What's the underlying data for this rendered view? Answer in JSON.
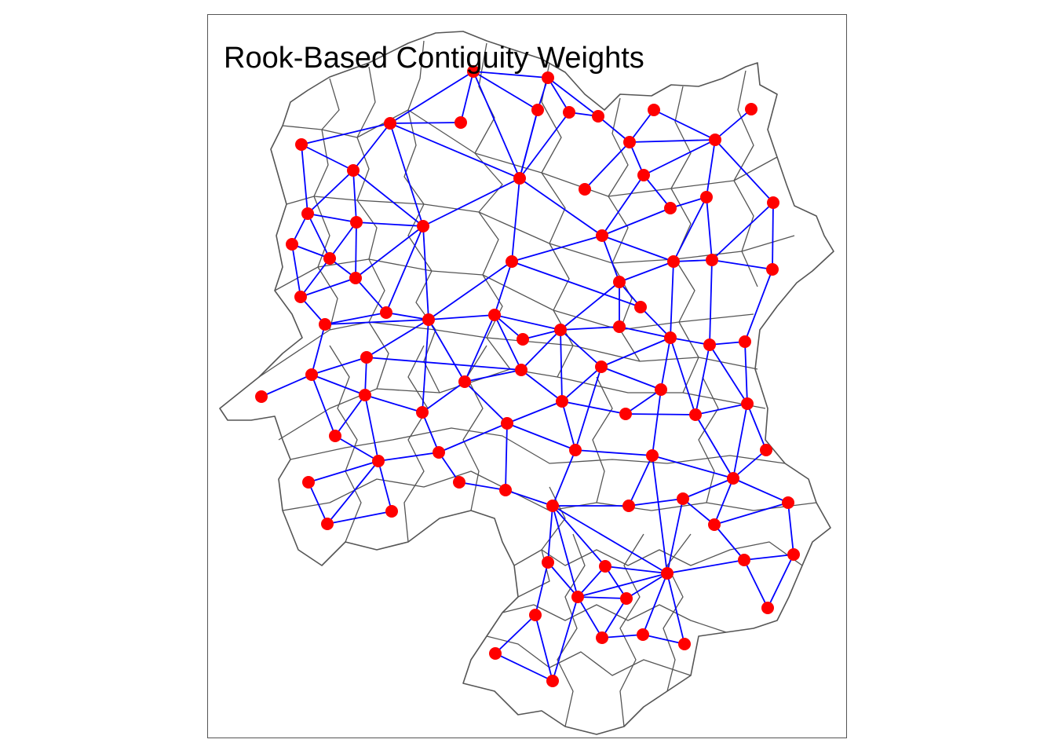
{
  "title": "Rook-Based Contiguity Weights",
  "colors": {
    "background": "#ffffff",
    "frame": "#555555",
    "boundary": "#555555",
    "link": "#0000ff",
    "centroid": "#ff0000",
    "title": "#000000"
  },
  "legend": "none"
}
